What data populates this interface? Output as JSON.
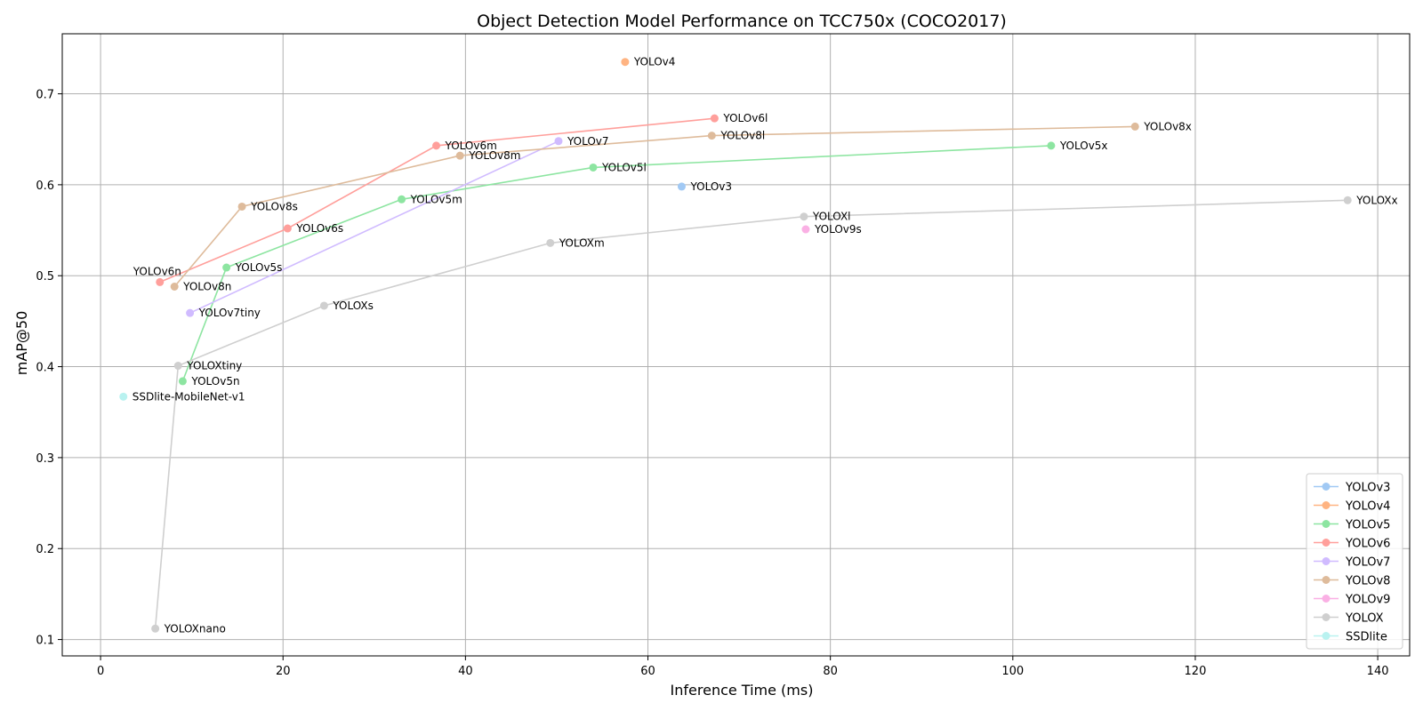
{
  "chart_data": {
    "type": "line",
    "title": "Object Detection Model Performance on TCC750x (COCO2017)",
    "xlabel": "Inference Time (ms)",
    "ylabel": "mAP@50",
    "xlim": [
      -4.2,
      143.5
    ],
    "ylim": [
      0.082,
      0.766
    ],
    "xticks": [
      0,
      20,
      40,
      60,
      80,
      100,
      120,
      140
    ],
    "yticks": [
      0.1,
      0.2,
      0.3,
      0.4,
      0.5,
      0.6,
      0.7
    ],
    "grid": true,
    "legend_position": "lower-right",
    "series": [
      {
        "name": "YOLOv3",
        "color": "#a1c9f4",
        "points": [
          {
            "label": "YOLOv3",
            "x": 63.7,
            "y": 0.598
          }
        ]
      },
      {
        "name": "YOLOv4",
        "color": "#ffb482",
        "points": [
          {
            "label": "YOLOv4",
            "x": 57.5,
            "y": 0.735
          }
        ]
      },
      {
        "name": "YOLOv5",
        "color": "#8de5a1",
        "points": [
          {
            "label": "YOLOv5n",
            "x": 9.0,
            "y": 0.384
          },
          {
            "label": "YOLOv5s",
            "x": 13.8,
            "y": 0.509
          },
          {
            "label": "YOLOv5m",
            "x": 33.0,
            "y": 0.584
          },
          {
            "label": "YOLOv5l",
            "x": 54.0,
            "y": 0.619
          },
          {
            "label": "YOLOv5x",
            "x": 104.2,
            "y": 0.643
          }
        ]
      },
      {
        "name": "YOLOv6",
        "color": "#ff9f9b",
        "points": [
          {
            "label": "YOLOv6n",
            "x": 6.5,
            "y": 0.493
          },
          {
            "label": "YOLOv6s",
            "x": 20.5,
            "y": 0.552
          },
          {
            "label": "YOLOv6m",
            "x": 36.8,
            "y": 0.643
          },
          {
            "label": "YOLOv6l",
            "x": 67.3,
            "y": 0.673
          }
        ]
      },
      {
        "name": "YOLOv7",
        "color": "#d0bbff",
        "points": [
          {
            "label": "YOLOv7tiny",
            "x": 9.8,
            "y": 0.459
          },
          {
            "label": "YOLOv7",
            "x": 50.2,
            "y": 0.648
          }
        ]
      },
      {
        "name": "YOLOv8",
        "color": "#debb9b",
        "points": [
          {
            "label": "YOLOv8n",
            "x": 8.1,
            "y": 0.488
          },
          {
            "label": "YOLOv8s",
            "x": 15.5,
            "y": 0.576
          },
          {
            "label": "YOLOv8m",
            "x": 39.4,
            "y": 0.632
          },
          {
            "label": "YOLOv8l",
            "x": 67.0,
            "y": 0.654
          },
          {
            "label": "YOLOv8x",
            "x": 113.4,
            "y": 0.664
          }
        ]
      },
      {
        "name": "YOLOv9",
        "color": "#fab0e4",
        "points": [
          {
            "label": "YOLOv9s",
            "x": 77.3,
            "y": 0.551
          }
        ]
      },
      {
        "name": "YOLOX",
        "color": "#cfcfcf",
        "points": [
          {
            "label": "YOLOXnano",
            "x": 6.0,
            "y": 0.112
          },
          {
            "label": "YOLOXtiny",
            "x": 8.5,
            "y": 0.401
          },
          {
            "label": "YOLOXs",
            "x": 24.5,
            "y": 0.467
          },
          {
            "label": "YOLOXm",
            "x": 49.3,
            "y": 0.536
          },
          {
            "label": "YOLOXl",
            "x": 77.1,
            "y": 0.565
          },
          {
            "label": "YOLOXx",
            "x": 136.7,
            "y": 0.583
          }
        ]
      },
      {
        "name": "SSDlite",
        "color": "#b9f2f0",
        "points": [
          {
            "label": "SSDlite-MobileNet-v1",
            "x": 2.5,
            "y": 0.367
          }
        ]
      }
    ]
  }
}
